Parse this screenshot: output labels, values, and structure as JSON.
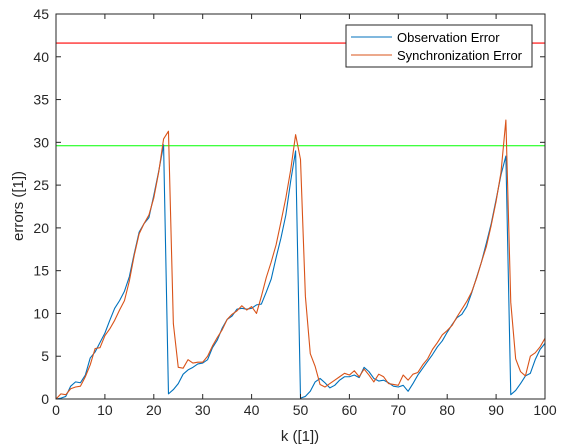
{
  "chart_data": {
    "type": "line",
    "xlabel": "k ([1])",
    "ylabel": "errors ([1])",
    "xlim": [
      0,
      100
    ],
    "ylim": [
      0,
      45
    ],
    "xticks": [
      0,
      10,
      20,
      30,
      40,
      50,
      60,
      70,
      80,
      90,
      100
    ],
    "yticks": [
      0,
      5,
      10,
      15,
      20,
      25,
      30,
      35,
      40,
      45
    ],
    "grid": false,
    "legend_position": "top-right",
    "series": [
      {
        "name": "Observation Error",
        "color": "#0072BD",
        "x": [
          0,
          1,
          2,
          3,
          4,
          5,
          6,
          7,
          8,
          9,
          10,
          11,
          12,
          13,
          14,
          15,
          16,
          17,
          18,
          19,
          20,
          21,
          22,
          23,
          24,
          25,
          26,
          27,
          28,
          29,
          30,
          31,
          32,
          33,
          34,
          35,
          36,
          37,
          38,
          39,
          40,
          41,
          42,
          43,
          44,
          45,
          46,
          47,
          48,
          49,
          50,
          51,
          52,
          53,
          54,
          55,
          56,
          57,
          58,
          59,
          60,
          61,
          62,
          63,
          64,
          65,
          66,
          67,
          68,
          69,
          70,
          71,
          72,
          73,
          74,
          75,
          76,
          77,
          78,
          79,
          80,
          81,
          82,
          83,
          84,
          85,
          86,
          87,
          88,
          89,
          90,
          91,
          92,
          93,
          94,
          95,
          96,
          97,
          98,
          99,
          100
        ],
        "values": [
          0,
          0.1,
          0.3,
          1.5,
          2.0,
          1.9,
          2.8,
          4.8,
          5.5,
          6.6,
          7.7,
          9.2,
          10.6,
          11.5,
          12.6,
          14.3,
          17.0,
          19.5,
          20.5,
          21.2,
          23.8,
          26.6,
          29.7,
          0.6,
          1.1,
          1.8,
          2.9,
          3.4,
          3.7,
          4.1,
          4.2,
          4.6,
          6.0,
          6.9,
          8.3,
          9.3,
          9.7,
          10.5,
          10.6,
          10.5,
          10.6,
          11.0,
          11.1,
          12.5,
          14.0,
          16.5,
          18.8,
          21.5,
          25.5,
          29.0,
          0.1,
          0.3,
          0.9,
          2.0,
          2.4,
          1.9,
          1.3,
          1.6,
          2.2,
          2.6,
          2.6,
          2.8,
          2.5,
          3.7,
          3.2,
          2.4,
          2.1,
          2.2,
          1.9,
          1.5,
          1.4,
          1.6,
          0.9,
          1.8,
          2.8,
          3.6,
          4.4,
          5.2,
          6.1,
          6.8,
          7.8,
          8.7,
          9.5,
          9.9,
          10.8,
          12.4,
          14.2,
          16.0,
          18.2,
          20.5,
          23.3,
          26.2,
          28.4,
          0.5,
          1.0,
          1.8,
          2.7,
          3.0,
          4.6,
          5.8,
          6.5
        ],
        "style": "solid"
      },
      {
        "name": "Synchronization Error",
        "color": "#D95319",
        "x": [
          0,
          1,
          2,
          3,
          4,
          5,
          6,
          7,
          8,
          9,
          10,
          11,
          12,
          13,
          14,
          15,
          16,
          17,
          18,
          19,
          20,
          21,
          22,
          23,
          24,
          25,
          26,
          27,
          28,
          29,
          30,
          31,
          32,
          33,
          34,
          35,
          36,
          37,
          38,
          39,
          40,
          41,
          42,
          43,
          44,
          45,
          46,
          47,
          48,
          49,
          50,
          51,
          52,
          53,
          54,
          55,
          56,
          57,
          58,
          59,
          60,
          61,
          62,
          63,
          64,
          65,
          66,
          67,
          68,
          69,
          70,
          71,
          72,
          73,
          74,
          75,
          76,
          77,
          78,
          79,
          80,
          81,
          82,
          83,
          84,
          85,
          86,
          87,
          88,
          89,
          90,
          91,
          92,
          93,
          94,
          95,
          96,
          97,
          98,
          99,
          100
        ],
        "values": [
          0,
          0.6,
          0.5,
          1.2,
          1.4,
          1.5,
          2.6,
          4.0,
          5.9,
          6.0,
          7.4,
          8.2,
          9.2,
          10.4,
          11.5,
          13.8,
          16.8,
          19.3,
          20.5,
          21.5,
          23.5,
          26.5,
          30.4,
          31.3,
          8.8,
          3.7,
          3.6,
          4.6,
          4.2,
          4.3,
          4.3,
          5.0,
          6.2,
          7.2,
          8.1,
          9.3,
          9.9,
          10.3,
          10.9,
          10.4,
          10.8,
          10.0,
          12.0,
          14.2,
          16.0,
          18.0,
          20.7,
          23.5,
          26.8,
          30.9,
          28.0,
          12.0,
          5.3,
          3.8,
          1.7,
          1.4,
          1.8,
          2.2,
          2.6,
          3.0,
          2.8,
          3.3,
          2.6,
          3.5,
          2.8,
          2.0,
          2.9,
          2.6,
          1.8,
          1.7,
          1.6,
          2.8,
          2.2,
          2.9,
          3.1,
          4.0,
          4.7,
          5.8,
          6.6,
          7.5,
          8.0,
          8.6,
          9.6,
          10.5,
          11.4,
          12.5,
          14.1,
          16.0,
          17.8,
          20.3,
          23.1,
          26.5,
          32.6,
          11.3,
          4.7,
          3.2,
          2.7,
          5.0,
          5.4,
          6.1,
          7.1
        ],
        "style": "solid"
      },
      {
        "name": "",
        "color": "#FF0000",
        "x": [
          0,
          100
        ],
        "values": [
          41.6,
          41.6
        ],
        "style": "solid"
      },
      {
        "name": "",
        "color": "#00FF00",
        "x": [
          0,
          100
        ],
        "values": [
          29.6,
          29.6
        ],
        "style": "solid"
      }
    ]
  }
}
